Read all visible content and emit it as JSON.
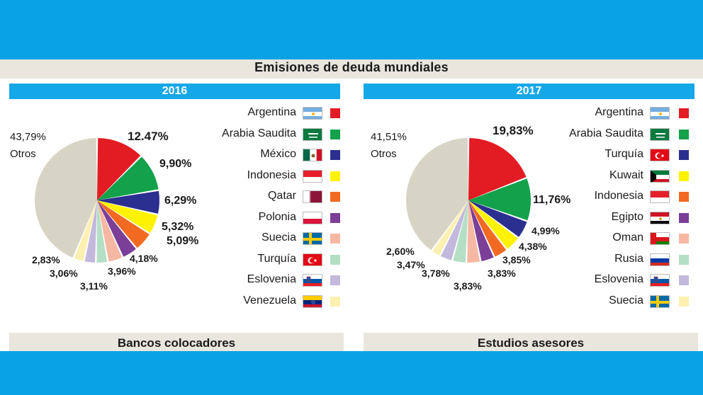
{
  "title": "Emisiones de deuda mundiales",
  "colors": {
    "background": "#0aa2e6",
    "year_bar": "#14a8e8",
    "others": "#d8d4c5",
    "slices": [
      "#e31b23",
      "#13a14b",
      "#2b2f8f",
      "#fff200",
      "#f26a22",
      "#7b3f98",
      "#f6b8a2",
      "#b4dfc5",
      "#c2b9dc",
      "#fdf0b0"
    ]
  },
  "bottom": {
    "left": "Bancos colocadores",
    "right": "Estudios asesores"
  },
  "chart_data": [
    {
      "type": "pie",
      "title": "2016",
      "others": {
        "label": "Otros",
        "value_label": "43,79%",
        "value": 43.79
      },
      "slices": [
        {
          "label": "Argentina",
          "value": 12.47,
          "value_label": "12.47%",
          "flag": "argentina-flag"
        },
        {
          "label": "Arabia Saudita",
          "value": 9.9,
          "value_label": "9,90%",
          "flag": "saudi-arabia-flag"
        },
        {
          "label": "México",
          "value": 6.29,
          "value_label": "6,29%",
          "flag": "mexico-flag"
        },
        {
          "label": "Indonesia",
          "value": 5.32,
          "value_label": "5,32%",
          "flag": "indonesia-flag"
        },
        {
          "label": "Qatar",
          "value": 5.09,
          "value_label": "5,09%",
          "flag": "qatar-flag"
        },
        {
          "label": "Polonia",
          "value": 4.18,
          "value_label": "4,18%",
          "flag": "poland-flag"
        },
        {
          "label": "Suecia",
          "value": 3.96,
          "value_label": "3,96%",
          "flag": "sweden-flag"
        },
        {
          "label": "Turquía",
          "value": 3.11,
          "value_label": "3,11%",
          "flag": "turkey-flag"
        },
        {
          "label": "Eslovenia",
          "value": 3.06,
          "value_label": "3,06%",
          "flag": "slovenia-flag"
        },
        {
          "label": "Venezuela",
          "value": 2.83,
          "value_label": "2,83%",
          "flag": "venezuela-flag"
        }
      ]
    },
    {
      "type": "pie",
      "title": "2017",
      "others": {
        "label": "Otros",
        "value_label": "41,51%",
        "value": 41.51
      },
      "slices": [
        {
          "label": "Argentina",
          "value": 19.83,
          "value_label": "19,83%",
          "flag": "argentina-flag"
        },
        {
          "label": "Arabia Saudita",
          "value": 11.76,
          "value_label": "11,76%",
          "flag": "saudi-arabia-flag"
        },
        {
          "label": "Turquía",
          "value": 4.99,
          "value_label": "4,99%",
          "flag": "turkey-flag"
        },
        {
          "label": "Kuwait",
          "value": 4.38,
          "value_label": "4,38%",
          "flag": "kuwait-flag"
        },
        {
          "label": "Indonesia",
          "value": 3.85,
          "value_label": "3,85%",
          "flag": "indonesia-flag"
        },
        {
          "label": "Egipto",
          "value": 3.83,
          "value_label": "3,83%",
          "flag": "egypt-flag"
        },
        {
          "label": "Oman",
          "value": 3.83,
          "value_label": "3,83%",
          "flag": "oman-flag"
        },
        {
          "label": "Rusia",
          "value": 3.78,
          "value_label": "3,78%",
          "flag": "russia-flag"
        },
        {
          "label": "Eslovenia",
          "value": 3.47,
          "value_label": "3,47%",
          "flag": "slovenia-flag"
        },
        {
          "label": "Suecia",
          "value": 2.6,
          "value_label": "2,60%",
          "flag": "sweden-flag"
        }
      ]
    }
  ]
}
